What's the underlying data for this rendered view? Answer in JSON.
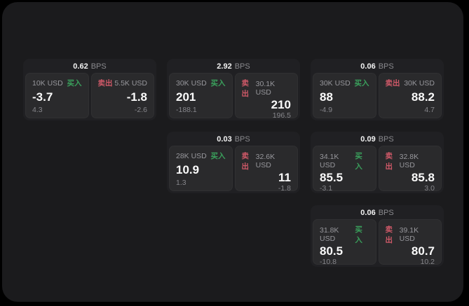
{
  "panel": {
    "bg": "#1b1b1d",
    "outer_bg": "#000000"
  },
  "labels": {
    "buy": "买入",
    "sell": "卖出",
    "bps_unit": "BPS"
  },
  "colors": {
    "buy": "#3aa05c",
    "sell": "#cf5968",
    "price_text": "#fafafa",
    "muted_text": "#97979c"
  },
  "cards": [
    {
      "row": 1,
      "col": 1,
      "bps": "0.62",
      "buy": {
        "notional": "10K USD",
        "price": "-3.7",
        "sub": "4.3"
      },
      "sell": {
        "notional": "5.5K USD",
        "price": "-1.8",
        "sub": "-2.6"
      }
    },
    {
      "row": 1,
      "col": 2,
      "bps": "2.92",
      "buy": {
        "notional": "30K USD",
        "price": "201",
        "sub": "-188.1"
      },
      "sell": {
        "notional": "30.1K USD",
        "price": "210",
        "sub": "196.5"
      }
    },
    {
      "row": 1,
      "col": 3,
      "bps": "0.06",
      "buy": {
        "notional": "30K USD",
        "price": "88",
        "sub": "-4.9"
      },
      "sell": {
        "notional": "30K USD",
        "price": "88.2",
        "sub": "4.7"
      }
    },
    {
      "row": 2,
      "col": 2,
      "bps": "0.03",
      "buy": {
        "notional": "28K USD",
        "price": "10.9",
        "sub": "1.3"
      },
      "sell": {
        "notional": "32.6K USD",
        "price": "11",
        "sub": "-1.8"
      }
    },
    {
      "row": 2,
      "col": 3,
      "bps": "0.09",
      "buy": {
        "notional": "34.1K USD",
        "price": "85.5",
        "sub": "-3.1"
      },
      "sell": {
        "notional": "32.8K USD",
        "price": "85.8",
        "sub": "3.0"
      }
    },
    {
      "row": 3,
      "col": 3,
      "bps": "0.06",
      "buy": {
        "notional": "31.8K USD",
        "price": "80.5",
        "sub": "-10.8"
      },
      "sell": {
        "notional": "39.1K USD",
        "price": "80.7",
        "sub": "10.2"
      }
    }
  ]
}
